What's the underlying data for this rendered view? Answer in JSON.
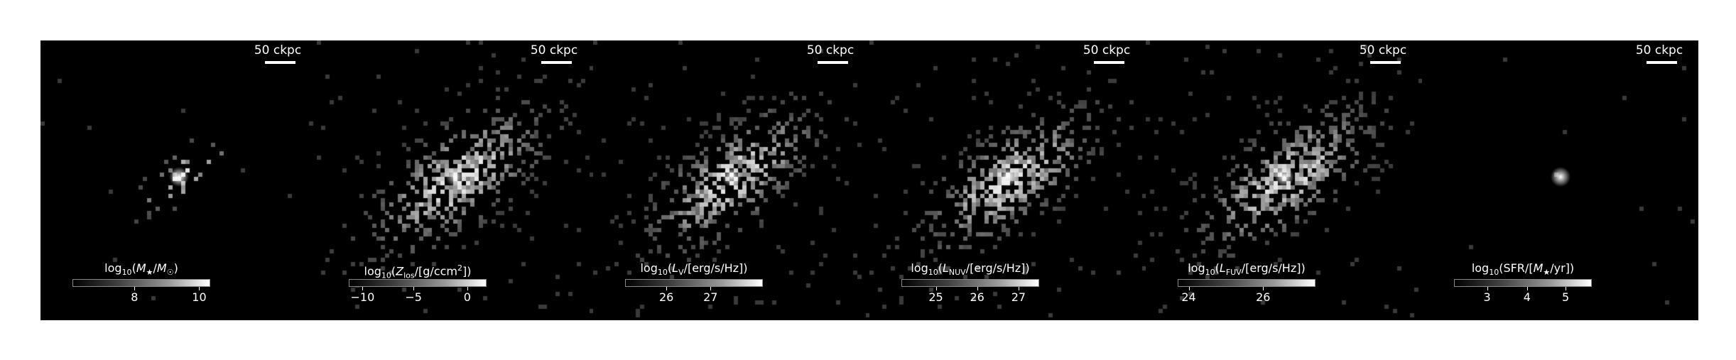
{
  "panels": [
    {
      "id": "mstar",
      "scale_label": "50 ckpc",
      "colorbar_label": "log10(M★/M☉)",
      "colorbar_html": "log<sub>10</sub>(<i>M</i><sub>★</sub>/<i>M</i><sub>☉</sub>)",
      "ticks": [
        {
          "label": "8",
          "frac": 0.45
        },
        {
          "label": "10",
          "frac": 0.92
        }
      ],
      "density": 0.18,
      "spread": 0.55,
      "core": 1.0
    },
    {
      "id": "zlos",
      "scale_label": "50 ckpc",
      "colorbar_label": "log10(Zlos/[g/ccm2])",
      "colorbar_html": "log<sub>10</sub>(<i>Z</i><sub>los</sub>/[g/ccm<sup>2</sup>])",
      "ticks": [
        {
          "label": "−10",
          "frac": 0.1
        },
        {
          "label": "−5",
          "frac": 0.47
        },
        {
          "label": "0",
          "frac": 0.86
        }
      ],
      "density": 0.62,
      "spread": 1.0,
      "core": 0.85
    },
    {
      "id": "lv",
      "scale_label": "50 ckpc",
      "colorbar_label": "log10(LV/[erg/s/Hz])",
      "colorbar_html": "log<sub>10</sub>(<i>L</i><sub>V</sub>/[erg/s/Hz])",
      "ticks": [
        {
          "label": "26",
          "frac": 0.3
        },
        {
          "label": "27",
          "frac": 0.62
        }
      ],
      "density": 0.55,
      "spread": 0.95,
      "core": 0.9
    },
    {
      "id": "lnuv",
      "scale_label": "50 ckpc",
      "colorbar_label": "log10(LNUV/[erg/s/Hz])",
      "colorbar_html": "log<sub>10</sub>(<i>L</i><sub>NUV</sub>/[erg/s/Hz])",
      "ticks": [
        {
          "label": "25",
          "frac": 0.25
        },
        {
          "label": "26",
          "frac": 0.55
        },
        {
          "label": "27",
          "frac": 0.85
        }
      ],
      "density": 0.6,
      "spread": 0.95,
      "core": 0.95
    },
    {
      "id": "lfuv",
      "scale_label": "50 ckpc",
      "colorbar_label": "log10(LFUV/[erg/s/Hz])",
      "colorbar_html": "log<sub>10</sub>(<i>L</i><sub>FUV</sub>/[erg/s/Hz])",
      "ticks": [
        {
          "label": "24",
          "frac": 0.08
        },
        {
          "label": "26",
          "frac": 0.62
        }
      ],
      "density": 0.62,
      "spread": 0.95,
      "core": 1.0
    },
    {
      "id": "sfr",
      "scale_label": "50 ckpc",
      "colorbar_label": "log10(SFR/[M★/yr])",
      "colorbar_html": "log<sub>10</sub>(SFR/[<i>M</i><sub>★</sub>/yr])",
      "ticks": [
        {
          "label": "3",
          "frac": 0.24
        },
        {
          "label": "4",
          "frac": 0.53
        },
        {
          "label": "5",
          "frac": 0.81
        }
      ],
      "density": 0.04,
      "spread": 0.2,
      "core": 1.0
    }
  ]
}
